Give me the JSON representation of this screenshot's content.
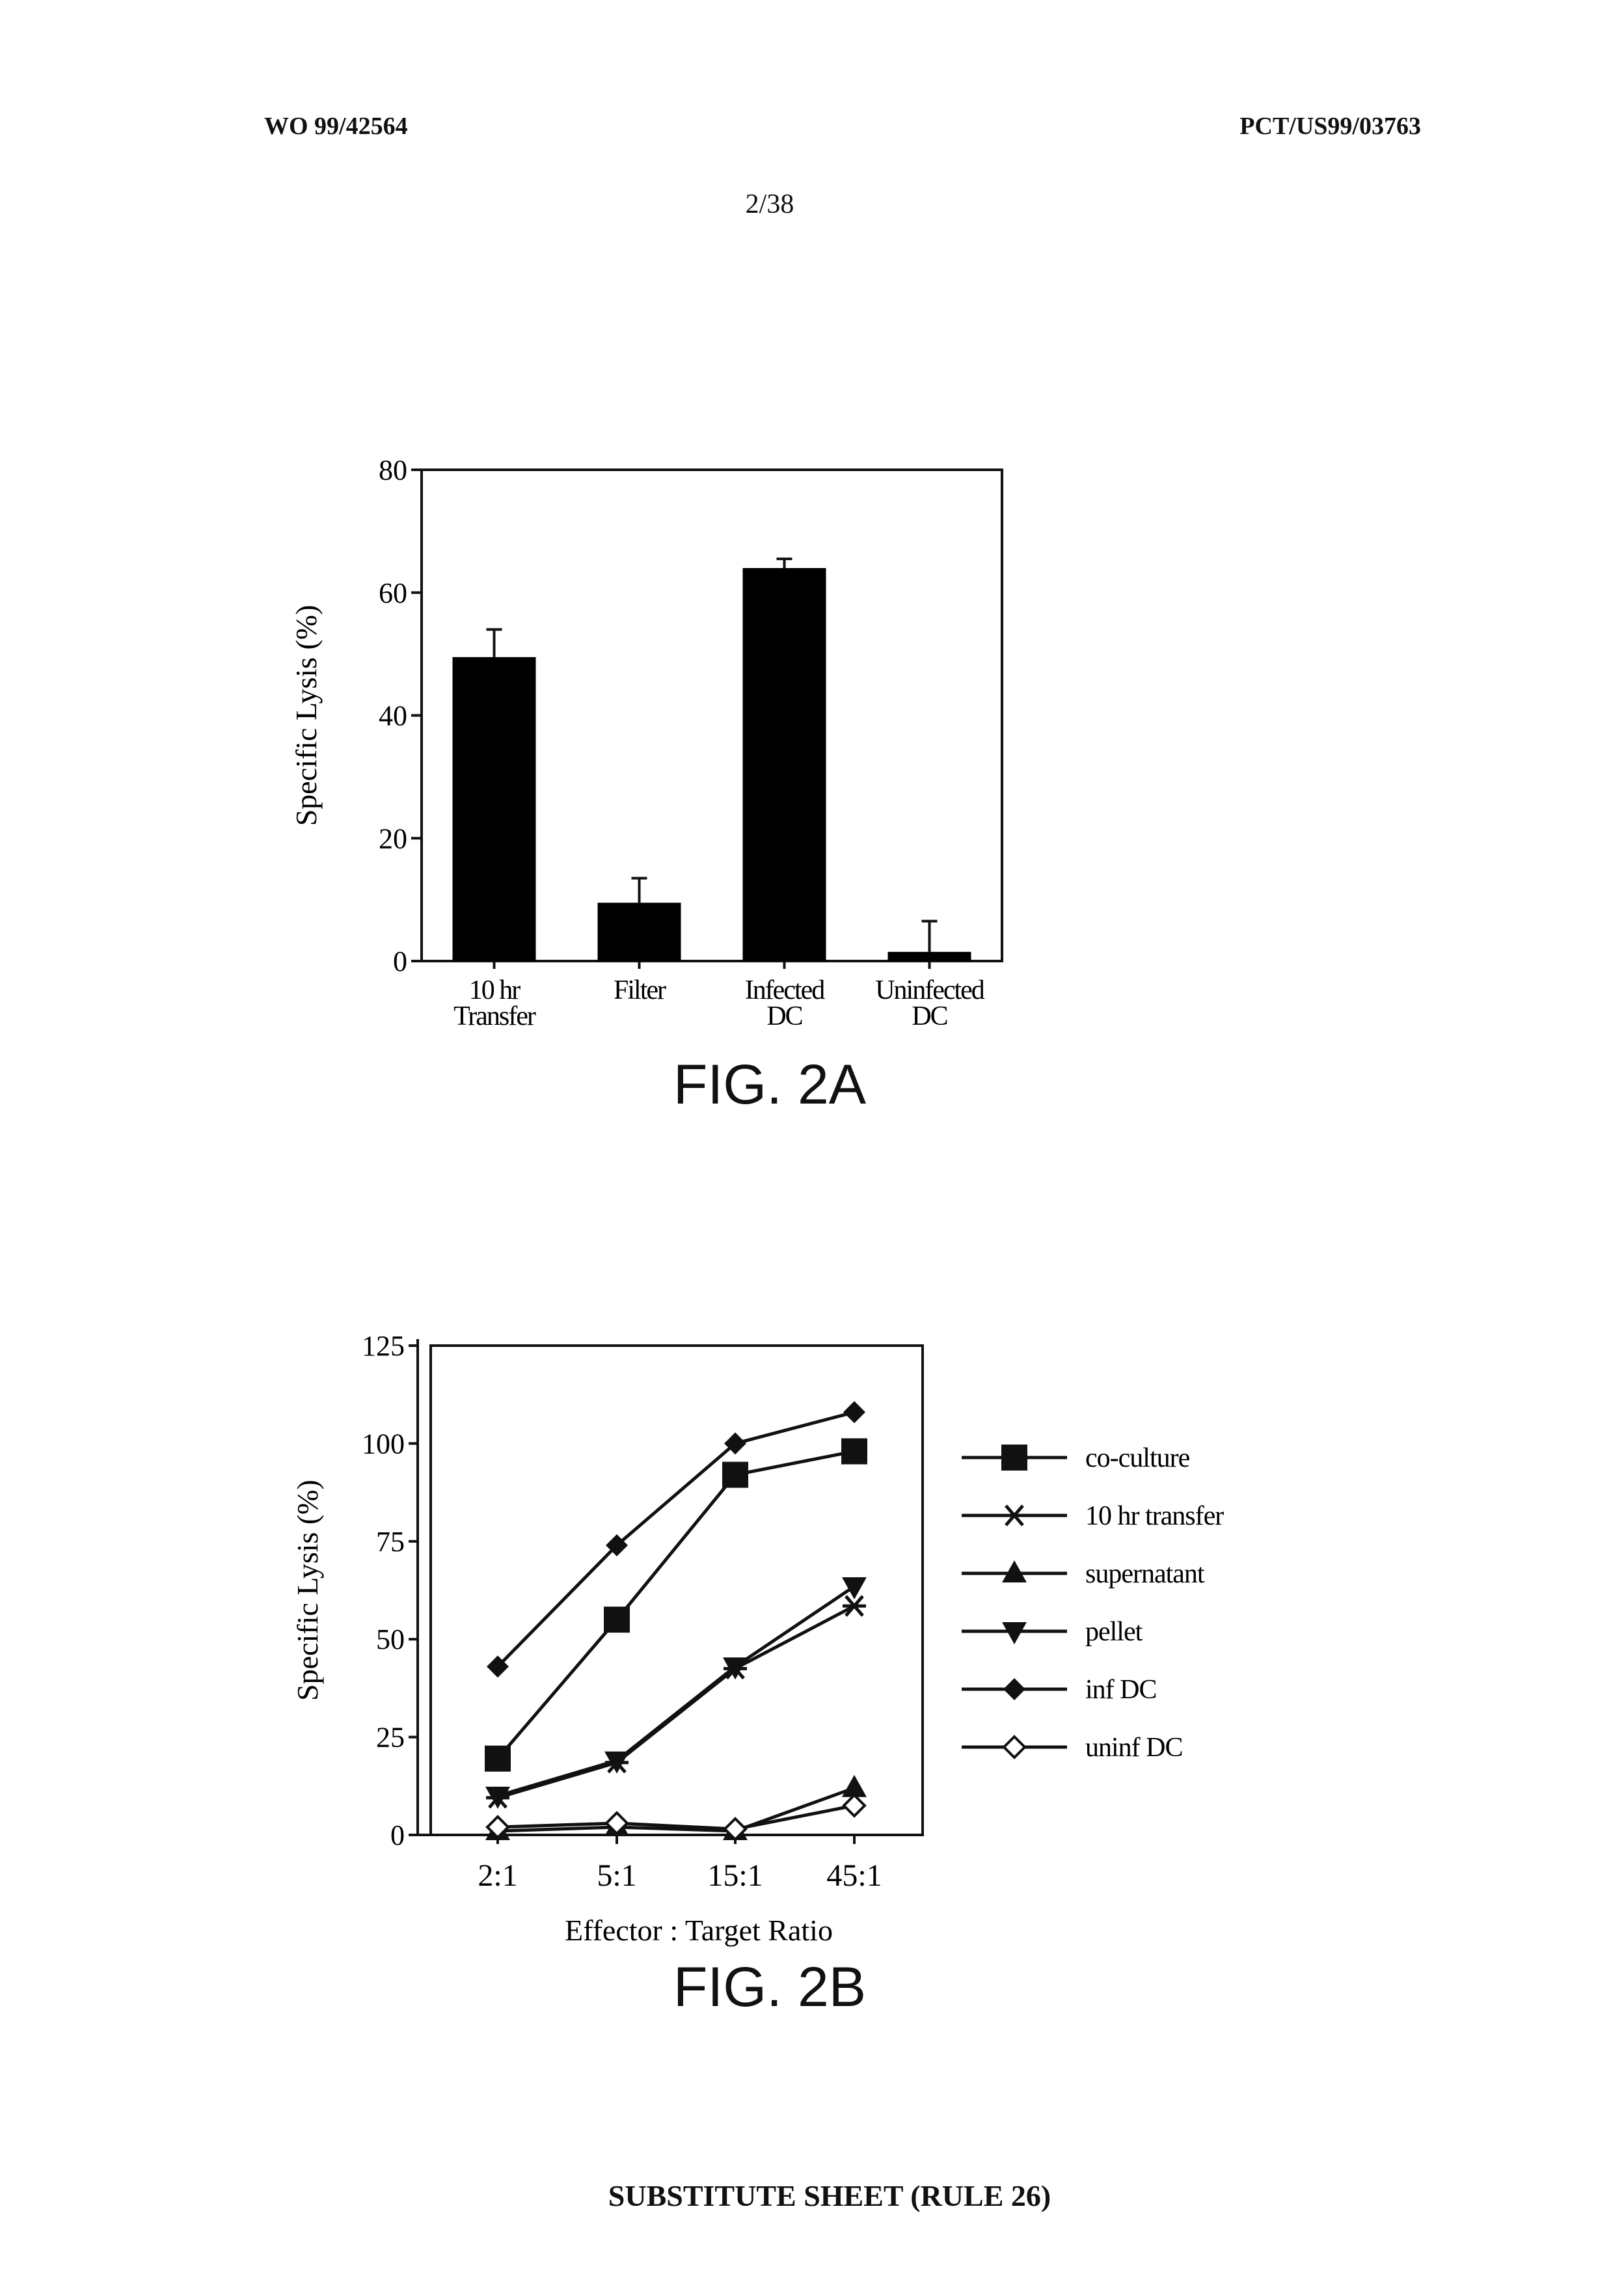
{
  "header": {
    "left": "WO 99/42564",
    "right": "PCT/US99/03763",
    "page": "2/38"
  },
  "footer": "SUBSTITUTE SHEET (RULE 26)",
  "chart_data": [
    {
      "type": "bar",
      "caption": "FIG. 2A",
      "ylabel": "Specific Lysis (%)",
      "xlabel": "",
      "ylim": [
        0,
        80
      ],
      "yticks": [
        0,
        20,
        40,
        60,
        80
      ],
      "categories": [
        [
          "10 hr",
          "Transfer"
        ],
        [
          "Filter"
        ],
        [
          "Infected",
          "DC"
        ],
        [
          "Uninfected",
          "DC"
        ]
      ],
      "values": [
        49.5,
        9.5,
        64,
        1.5
      ],
      "errors": [
        4.5,
        4,
        1.5,
        5
      ],
      "bar_color": "#000000"
    },
    {
      "type": "line",
      "caption": "FIG. 2B",
      "ylabel": "Specific Lysis (%)",
      "xlabel": "Effector : Target Ratio",
      "ylim": [
        0,
        125
      ],
      "yticks": [
        0,
        25,
        50,
        75,
        100,
        125
      ],
      "categories": [
        "2:1",
        "5:1",
        "15:1",
        "45:1"
      ],
      "legend_position": "right",
      "series": [
        {
          "name": "co-culture",
          "marker": "square",
          "values": [
            19.5,
            55,
            92,
            98
          ]
        },
        {
          "name": "10 hr transfer",
          "marker": "asterisk",
          "values": [
            9.5,
            18.5,
            42.5,
            58.5
          ]
        },
        {
          "name": "supernatant",
          "marker": "triangle-up",
          "values": [
            1,
            2,
            1,
            12
          ]
        },
        {
          "name": "pellet",
          "marker": "triangle-down",
          "values": [
            10,
            19,
            43,
            63.5
          ]
        },
        {
          "name": "inf DC",
          "marker": "diamond",
          "values": [
            43,
            74,
            100,
            108
          ]
        },
        {
          "name": "uninf DC",
          "marker": "diamond-open",
          "values": [
            2,
            3,
            1.5,
            7.5
          ]
        }
      ]
    }
  ]
}
